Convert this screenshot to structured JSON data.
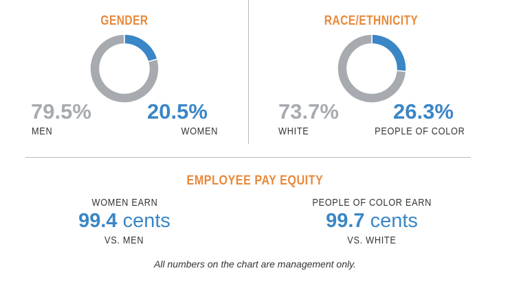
{
  "colors": {
    "accent": "#e8893a",
    "blue": "#3a86c6",
    "gray": "#a7abb0"
  },
  "chart_data": [
    {
      "type": "pie",
      "title": "GENDER",
      "slices": [
        {
          "label": "WOMEN",
          "value": 20.5,
          "display": "20.5%",
          "color": "#3a86c6"
        },
        {
          "label": "MEN",
          "value": 79.5,
          "display": "79.5%",
          "color": "#a7abb0"
        }
      ]
    },
    {
      "type": "pie",
      "title": "RACE/ETHNICITY",
      "slices": [
        {
          "label": "PEOPLE OF COLOR",
          "value": 26.3,
          "display": "26.3%",
          "color": "#3a86c6"
        },
        {
          "label": "WHITE",
          "value": 73.7,
          "display": "73.7%",
          "color": "#a7abb0"
        }
      ]
    }
  ],
  "pay_equity": {
    "title": "EMPLOYEE PAY EQUITY",
    "items": [
      {
        "top": "WOMEN EARN",
        "value": "99.4",
        "unit": "cents",
        "bottom": "VS. MEN"
      },
      {
        "top": "PEOPLE OF COLOR EARN",
        "value": "99.7",
        "unit": "cents",
        "bottom": "VS. WHITE"
      }
    ]
  },
  "footnote": "All numbers on the chart are management only."
}
